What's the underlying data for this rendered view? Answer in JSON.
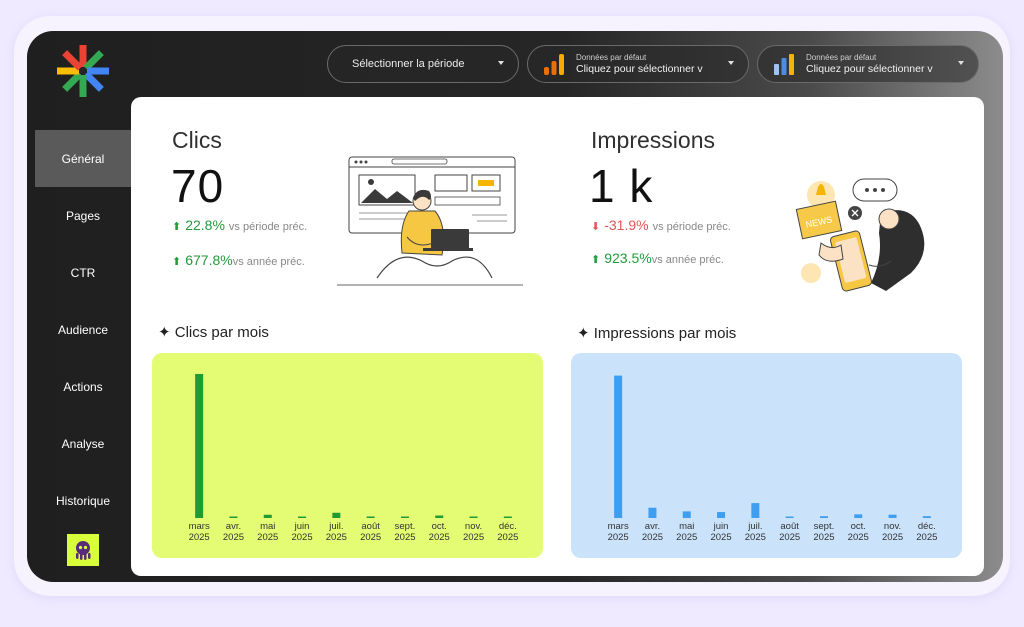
{
  "topbar": {
    "period_label": "Sélectionner la période",
    "source_1": {
      "caption": "Données par défaut",
      "label": "Cliquez pour sélectionner v"
    },
    "source_2": {
      "caption": "Données par défaut",
      "label": "Cliquez pour sélectionner v"
    }
  },
  "sidebar": {
    "items": [
      {
        "label": "Général",
        "active": true
      },
      {
        "label": "Pages"
      },
      {
        "label": "CTR"
      },
      {
        "label": "Audience"
      },
      {
        "label": "Actions"
      },
      {
        "label": "Analyse"
      },
      {
        "label": "Historique"
      }
    ]
  },
  "kpis": {
    "clicks": {
      "title": "Clics",
      "value": "70",
      "d1": {
        "value": "22.8%",
        "label": "vs période préc.",
        "trend": "up"
      },
      "d2": {
        "value": "677.8%",
        "label": "vs année préc.",
        "trend": "up"
      }
    },
    "impressions": {
      "title": "Impressions",
      "value": "1 k",
      "d1": {
        "value": "-31.9%",
        "label": "vs période préc.",
        "trend": "down"
      },
      "d2": {
        "value": "923.5%",
        "label": "vs année préc.",
        "trend": "up"
      }
    }
  },
  "colors": {
    "clicks_bg": "#e4fc74",
    "clicks_bar": "#1f9a34",
    "impr_bg": "#cae3fb",
    "impr_bar": "#3f9ef0",
    "up": "#239b3a",
    "down": "#e65454"
  },
  "chart_data": [
    {
      "type": "bar",
      "title": "✦ Clics par mois",
      "categories": [
        [
          "mars",
          "2025"
        ],
        [
          "avr.",
          "2025"
        ],
        [
          "mai",
          "2025"
        ],
        [
          "juin",
          "2025"
        ],
        [
          "juil.",
          "2025"
        ],
        [
          "août",
          "2025"
        ],
        [
          "sept.",
          "2025"
        ],
        [
          "oct.",
          "2025"
        ],
        [
          "nov.",
          "2025"
        ],
        [
          "déc.",
          "2025"
        ]
      ],
      "values": [
        58,
        0.4,
        1.3,
        0.3,
        2.1,
        0.3,
        0.2,
        1.0,
        0.4,
        0.5
      ],
      "ylim": [
        0,
        60
      ],
      "grid": false
    },
    {
      "type": "bar",
      "title": "✦ Impressions par mois",
      "categories": [
        [
          "mars",
          "2025"
        ],
        [
          "avr.",
          "2025"
        ],
        [
          "mai",
          "2025"
        ],
        [
          "juin",
          "2025"
        ],
        [
          "juil.",
          "2025"
        ],
        [
          "août",
          "2025"
        ],
        [
          "sept.",
          "2025"
        ],
        [
          "oct.",
          "2025"
        ],
        [
          "nov.",
          "2025"
        ],
        [
          "déc.",
          "2025"
        ]
      ],
      "values": [
        860,
        62,
        40,
        36,
        90,
        5,
        11,
        22,
        20,
        11
      ],
      "ylim": [
        0,
        900
      ],
      "grid": false
    }
  ]
}
